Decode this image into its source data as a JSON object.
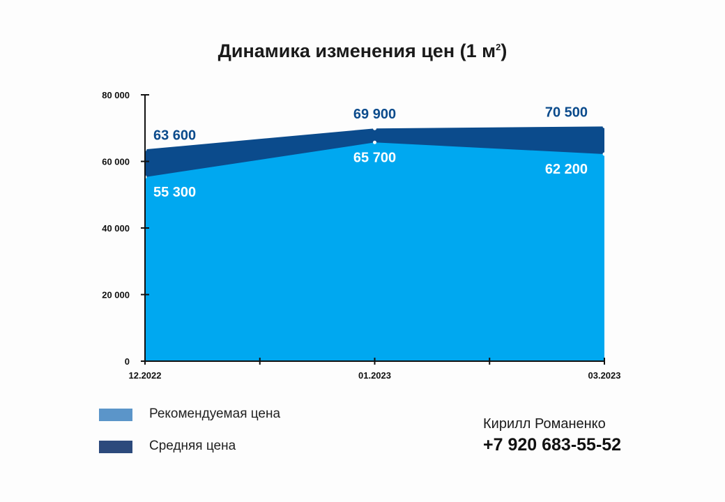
{
  "chart_data": {
    "type": "area",
    "title": "Динамика изменения цен (1 м",
    "title_superscript": "2",
    "title_suffix": ")",
    "x": [
      "12.2022",
      "01.2023",
      "03.2023"
    ],
    "x_ticks": [
      "12.2022",
      "01.2023",
      "03.2023"
    ],
    "y_ticks": [
      "0",
      "20 000",
      "40 000",
      "60 000",
      "80 000"
    ],
    "ylim": [
      0,
      80000
    ],
    "grid": false,
    "legend_position": "bottom-left",
    "series": [
      {
        "name": "Рекомендуемая цена",
        "values": [
          55300,
          65700,
          62200
        ],
        "labels": [
          "55 300",
          "65 700",
          "62 200"
        ],
        "color": "#00a8f0"
      },
      {
        "name": "Средняя цена",
        "values": [
          63600,
          69900,
          70500
        ],
        "labels": [
          "63 600",
          "69 900",
          "70 500"
        ],
        "color": "#0b4b8c"
      }
    ]
  },
  "legend": {
    "items": [
      {
        "label": "Рекомендуемая цена",
        "color": "#5b95c9"
      },
      {
        "label": "Средняя цена",
        "color": "#2c4a7c"
      }
    ]
  },
  "contact": {
    "name": "Кирилл Романенко",
    "phone": "+7 920 683-55-52"
  }
}
